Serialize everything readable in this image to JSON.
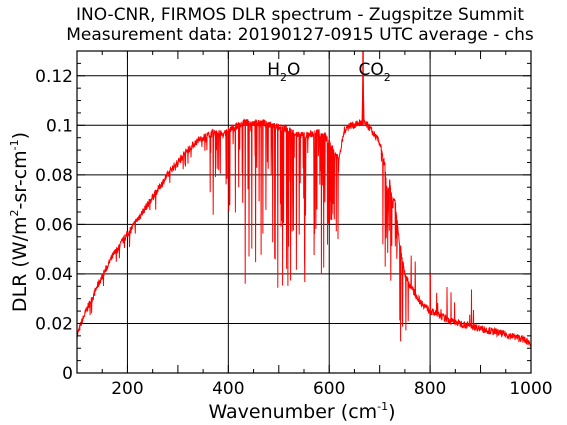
{
  "chart_data": {
    "type": "line",
    "title": "INO-CNR, FIRMOS DLR spectrum - Zugspitze Summit",
    "subtitle": "Measurement data: 20190127-0915 UTC average - chs",
    "xlabel": {
      "prefix": "Wavenumber (cm",
      "sup": "-1",
      "suffix": ")"
    },
    "ylabel": {
      "p1": "DLR (W/m",
      "sup1": "2",
      "p2": "-sr-cm",
      "sup2": "-1",
      "p3": ")"
    },
    "xlim": [
      100,
      1000
    ],
    "ylim": [
      0,
      0.13
    ],
    "x_ticks": [
      "200",
      "400",
      "600",
      "800",
      "1000"
    ],
    "y_ticks": [
      "0",
      "0.02",
      "0.04",
      "0.06",
      "0.08",
      "0.1",
      "0.12"
    ],
    "grid": true,
    "line_color": "#ff0000",
    "annotations": [
      {
        "main": "H",
        "sub": "2",
        "tail": "O",
        "x": 510
      },
      {
        "main": "CO",
        "sub": "2",
        "tail": "",
        "x": 690
      }
    ],
    "series": [
      {
        "x": [
          100,
          110,
          120,
          130,
          140,
          150,
          160,
          170,
          180,
          190,
          200,
          210,
          220,
          230,
          240,
          250,
          260,
          270,
          280,
          290,
          300,
          310,
          320,
          330,
          340,
          350,
          360,
          370,
          380,
          390,
          400,
          410,
          420,
          430,
          440,
          450,
          460,
          470,
          480,
          490,
          500,
          510,
          520,
          530,
          540,
          550,
          560,
          570,
          580,
          590,
          600,
          610,
          620,
          630,
          640,
          650,
          660,
          665,
          667,
          669,
          675,
          680,
          690,
          700,
          710,
          715,
          720,
          725,
          730,
          740,
          750,
          760,
          770,
          780,
          790,
          800,
          820,
          840,
          860,
          880,
          900,
          920,
          940,
          960,
          980,
          1000
        ],
        "y": [
          0.015,
          0.021,
          0.026,
          0.03,
          0.035,
          0.039,
          0.043,
          0.047,
          0.05,
          0.053,
          0.056,
          0.059,
          0.062,
          0.065,
          0.068,
          0.071,
          0.074,
          0.077,
          0.08,
          0.083,
          0.085,
          0.088,
          0.09,
          0.092,
          0.094,
          0.095,
          0.096,
          0.097,
          0.097,
          0.096,
          0.098,
          0.099,
          0.1,
          0.101,
          0.101,
          0.101,
          0.101,
          0.101,
          0.1,
          0.1,
          0.099,
          0.099,
          0.098,
          0.097,
          0.096,
          0.096,
          0.096,
          0.097,
          0.097,
          0.096,
          0.093,
          0.089,
          0.087,
          0.098,
          0.1,
          0.1,
          0.101,
          0.101,
          0.122,
          0.101,
          0.1,
          0.099,
          0.096,
          0.093,
          0.084,
          0.072,
          0.078,
          0.069,
          0.07,
          0.052,
          0.04,
          0.035,
          0.032,
          0.029,
          0.027,
          0.025,
          0.023,
          0.021,
          0.02,
          0.019,
          0.018,
          0.017,
          0.016,
          0.015,
          0.014,
          0.012
        ]
      }
    ]
  }
}
